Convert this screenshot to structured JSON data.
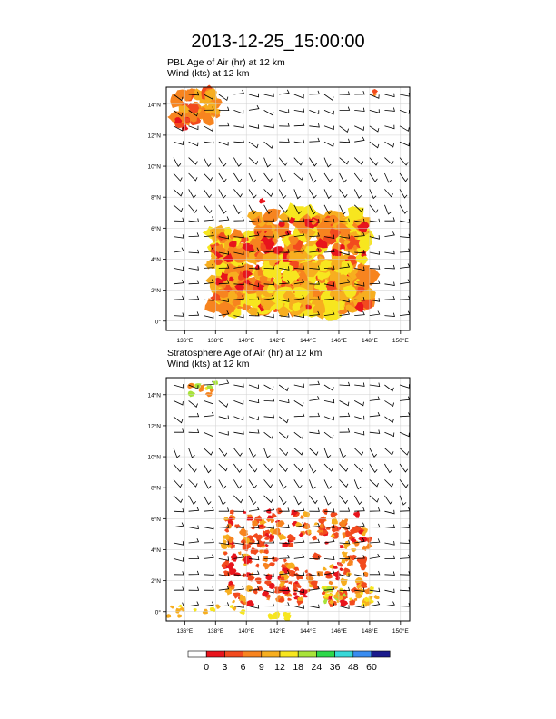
{
  "figure": {
    "title": "2013-12-25_15:00:00"
  },
  "panels": [
    {
      "id": "pbl",
      "subtitle_line1": "PBL Age of Air   (hr)     at   12 km",
      "subtitle_line2": "Wind   (kts)     at   12 km"
    },
    {
      "id": "strat",
      "subtitle_line1": "Stratosphere Age of Air   (hr)     at   12 km",
      "subtitle_line2": "Wind   (kts)     at   12 km"
    }
  ],
  "axes": {
    "lon_ticks": [
      "136°E",
      "138°E",
      "140°E",
      "142°E",
      "144°E",
      "146°E",
      "148°E",
      "150°E"
    ],
    "lat_ticks": [
      "0°",
      "2°N",
      "4°N",
      "6°N",
      "8°N",
      "10°N",
      "12°N",
      "14°N"
    ],
    "lon_range": [
      134.8,
      150.6
    ],
    "lat_range": [
      -0.6,
      15.1
    ]
  },
  "colorbar": {
    "labels": [
      "0",
      "3",
      "6",
      "9",
      "12",
      "18",
      "24",
      "36",
      "48",
      "60"
    ],
    "colors": [
      "#ffffff",
      "#e8141c",
      "#f24a1e",
      "#f7841f",
      "#f7ae1f",
      "#f7e61f",
      "#a8e33a",
      "#2ed84a",
      "#38d8d8",
      "#3a8cf0",
      "#1a1a8c"
    ]
  },
  "chart_data": {
    "type": "heatmap",
    "title": "2013-12-25_15:00:00",
    "x_ticks": [
      136,
      138,
      140,
      142,
      144,
      146,
      148,
      150
    ],
    "y_ticks": [
      0,
      2,
      4,
      6,
      8,
      10,
      12,
      14
    ],
    "xlim": [
      134.8,
      150.6
    ],
    "ylim": [
      -0.6,
      15.1
    ],
    "series": [
      {
        "panel": "pbl",
        "regions": [
          {
            "lon": [
              135.2,
              138.5
            ],
            "lat": [
              12.8,
              15.1
            ],
            "level": "6-9"
          },
          {
            "lon": [
              137.5,
              148.0
            ],
            "lat": [
              0.5,
              7.0
            ],
            "level": "3-18"
          },
          {
            "lon": [
              148.0,
              148.4
            ],
            "lat": [
              14.6,
              15.0
            ],
            "level": "6-9"
          }
        ]
      },
      {
        "panel": "strat",
        "regions": [
          {
            "lon": [
              136.0,
              138.0
            ],
            "lat": [
              14.0,
              14.8
            ],
            "level": "9-24"
          },
          {
            "lon": [
              138.0,
              148.0
            ],
            "lat": [
              -0.6,
              6.5
            ],
            "level": "3-18"
          }
        ]
      }
    ],
    "wind_barbs": "gridded barbs, roughly 16 x 15 per panel, mostly westerly-southwesterly"
  }
}
